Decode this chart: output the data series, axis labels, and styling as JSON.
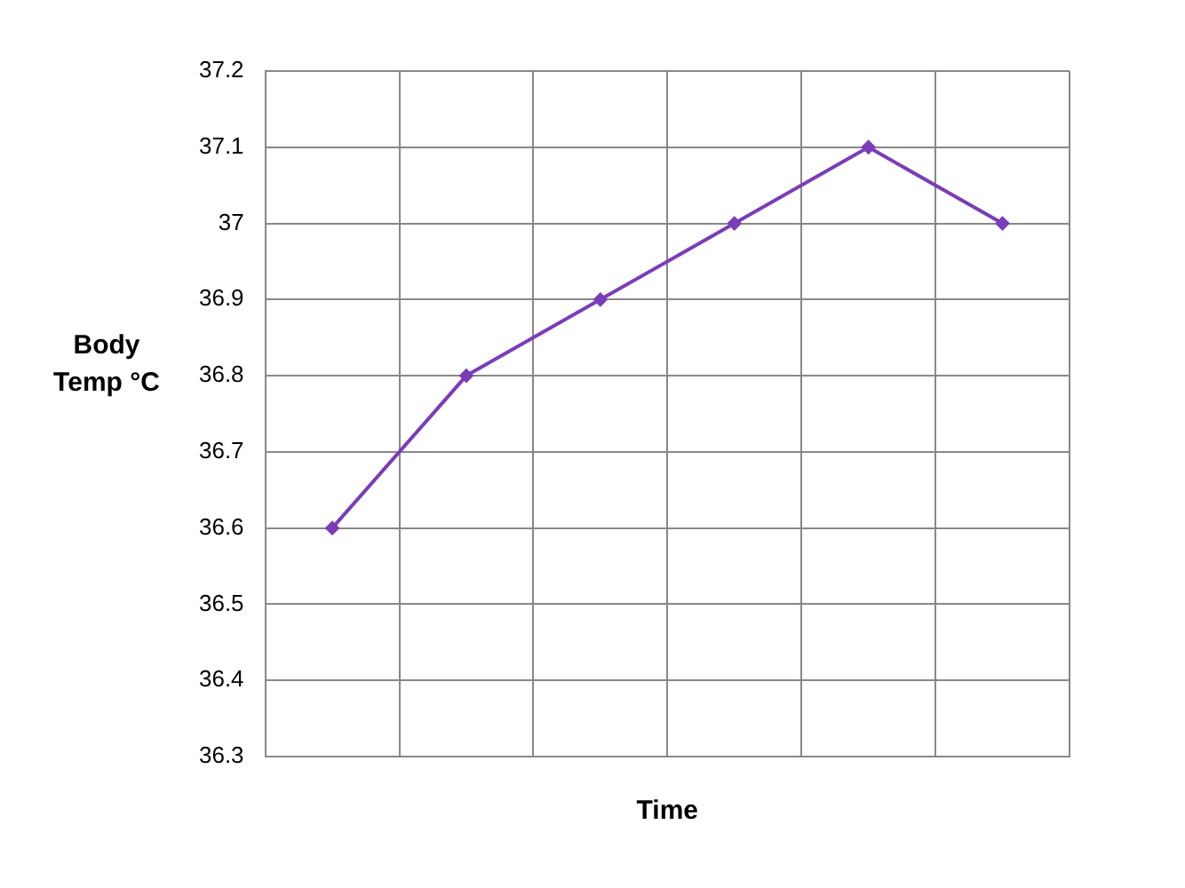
{
  "chart_data": {
    "type": "line",
    "xlabel": "Time",
    "ylabel": "Body Temp °C",
    "categories": [
      null,
      null,
      null,
      null,
      null,
      null
    ],
    "series": [
      {
        "color": "#7a3db8",
        "values": [
          36.6,
          36.8,
          36.9,
          37.0,
          37.1,
          37.0
        ]
      }
    ],
    "ylim": [
      36.3,
      37.2
    ],
    "yticks": [
      36.3,
      36.4,
      36.5,
      36.6,
      36.7,
      36.8,
      36.9,
      37,
      37.1,
      37.2
    ],
    "grid": true,
    "legend": false,
    "marker": "diamond",
    "line_style": "solid",
    "tick_labels": "y"
  }
}
